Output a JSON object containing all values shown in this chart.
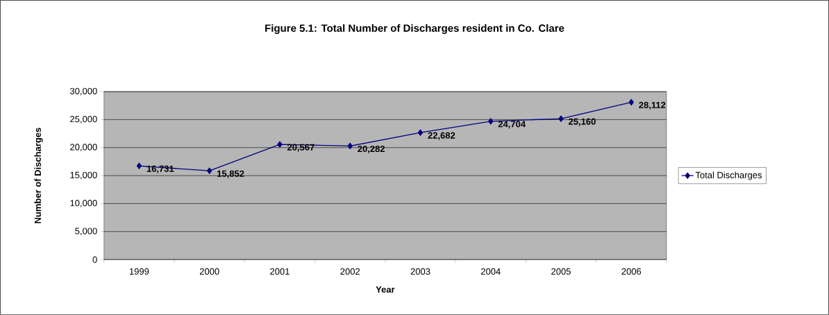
{
  "chart_data": {
    "type": "line",
    "title": "Figure 5.1: Total Number of Discharges resident in Co. Clare",
    "xlabel": "Year",
    "ylabel": "Number of Discharges",
    "categories": [
      "1999",
      "2000",
      "2001",
      "2002",
      "2003",
      "2004",
      "2005",
      "2006"
    ],
    "series": [
      {
        "name": "Total Discharges",
        "color": "#000080",
        "values": [
          16731,
          15852,
          20567,
          20282,
          22682,
          24704,
          25160,
          28112
        ]
      }
    ],
    "value_labels": [
      "16,731",
      "15,852",
      "20,567",
      "20,282",
      "22,682",
      "24,704",
      "25,160",
      "28,112"
    ],
    "ylim": [
      0,
      30000
    ],
    "yticks": [
      0,
      {
        "value": 5000,
        "label": "5,000"
      },
      {
        "value": 10000,
        "label": "10,000"
      },
      {
        "value": 15000,
        "label": "15,000"
      },
      {
        "value": 20000,
        "label": "20,000"
      },
      {
        "value": 25000,
        "label": "25,000"
      },
      {
        "value": 30000,
        "label": "30,000"
      }
    ],
    "grid": "y",
    "legend": "right",
    "marker": "diamond",
    "line_style": "solid"
  }
}
